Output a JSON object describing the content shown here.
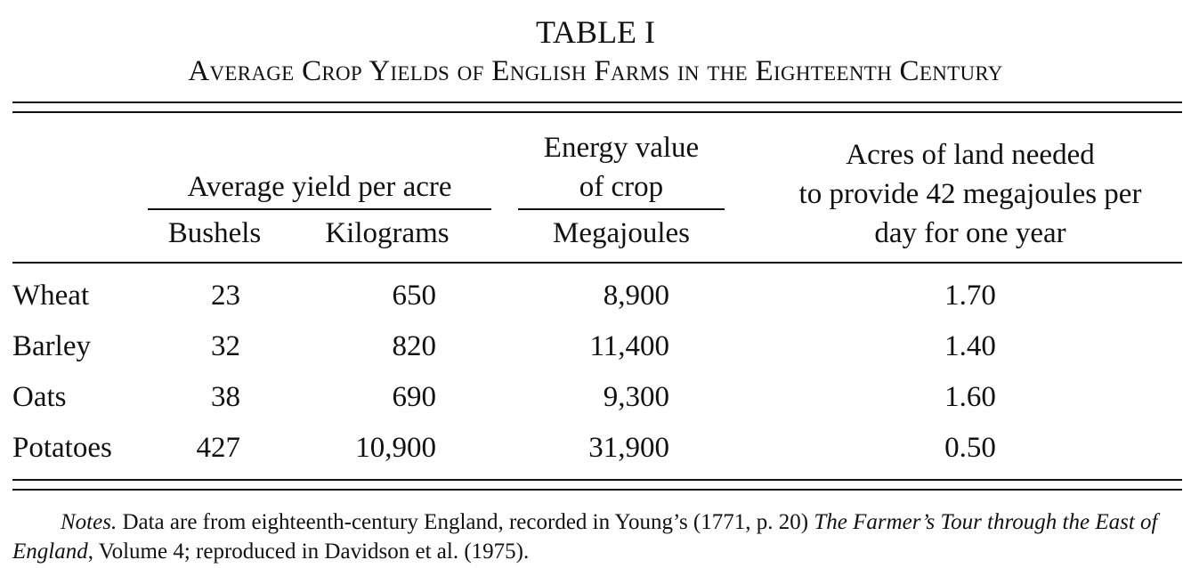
{
  "table": {
    "label": "TABLE I",
    "title": "Average Crop Yields of English Farms in the Eighteenth Century",
    "group_yield": "Average yield per acre",
    "group_energy_line1": "Energy value",
    "group_energy_line2": "of crop",
    "col_bushels": "Bushels",
    "col_kilograms": "Kilograms",
    "col_megajoules": "Megajoules",
    "col_acres_line1": "Acres of land needed",
    "col_acres_line2": "to provide 42 megajoules per",
    "col_acres_line3": "day for one year",
    "rows": [
      {
        "crop": "Wheat",
        "bushels": "23",
        "kilograms": "650",
        "megajoules": "8,900",
        "acres": "1.70"
      },
      {
        "crop": "Barley",
        "bushels": "32",
        "kilograms": "820",
        "megajoules": "11,400",
        "acres": "1.40"
      },
      {
        "crop": "Oats",
        "bushels": "38",
        "kilograms": "690",
        "megajoules": "9,300",
        "acres": "1.60"
      },
      {
        "crop": "Potatoes",
        "bushels": "427",
        "kilograms": "10,900",
        "megajoules": "31,900",
        "acres": "0.50"
      }
    ]
  },
  "notes": {
    "label": "Notes.",
    "text1": " Data are from eighteenth-century England, recorded in Young’s (1771, p. 20) ",
    "book_title": "The Farmer’s Tour through the East of England",
    "text2": ", Volume 4; reproduced in Davidson et al. (1975)."
  }
}
